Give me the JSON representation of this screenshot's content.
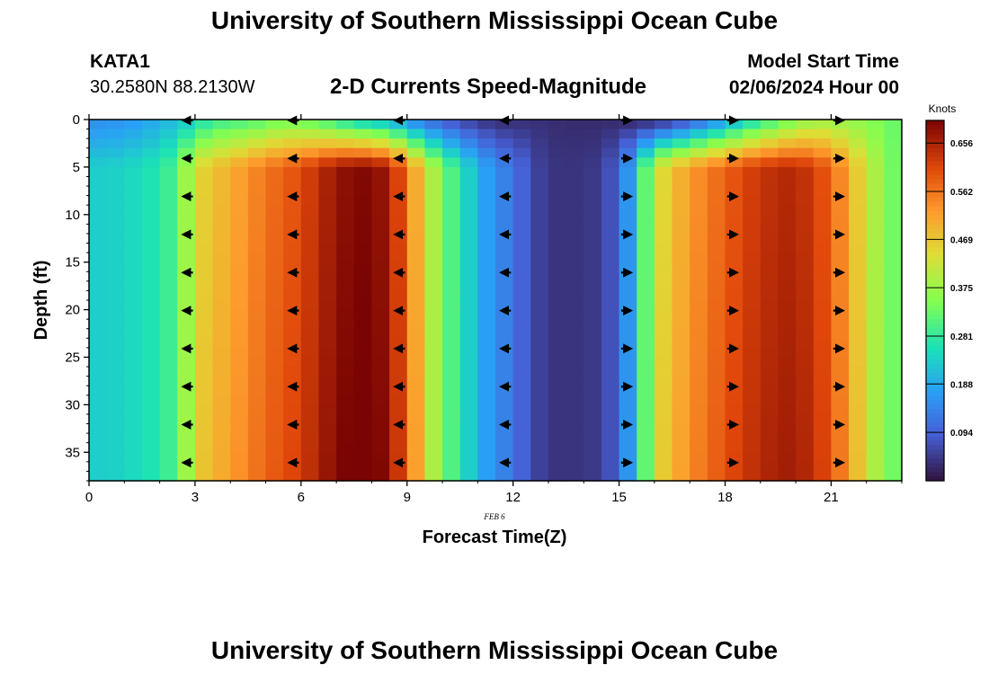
{
  "page": {
    "title_top": "University of Southern Mississippi Ocean Cube",
    "title_bottom": "University of Southern Mississippi Ocean Cube",
    "station_id": "KATA1",
    "station_coords": "30.2580N  88.2130W",
    "model_start_label": "Model Start Time",
    "model_start_value": "02/06/2024 Hour 00"
  },
  "chart_data": {
    "type": "heatmap",
    "title": "2-D Currents Speed-Magnitude",
    "xlabel": "Forecast Time(Z)",
    "ylabel": "Depth (ft)",
    "date_label": "FEB 6",
    "colorbar_title": "Knots",
    "xlim": [
      0,
      23
    ],
    "ylim": [
      0,
      38
    ],
    "vmin": 0,
    "vmax": 0.7,
    "x_ticks": [
      0,
      3,
      6,
      9,
      12,
      15,
      18,
      21
    ],
    "y_ticks": [
      0,
      5,
      10,
      15,
      20,
      25,
      30,
      35
    ],
    "colorbar_ticks": [
      "0.656",
      "0.562",
      "0.469",
      "0.375",
      "0.281",
      "0.188",
      "0.094"
    ],
    "colorbar_tick_values": [
      0.656,
      0.562,
      0.469,
      0.375,
      0.281,
      0.188,
      0.094
    ],
    "column_speed_profile": {
      "hours": [
        0,
        1,
        2,
        2.5,
        3,
        4,
        5,
        6,
        6.5,
        7,
        7.5,
        8,
        8.5,
        9,
        9.5,
        10,
        11,
        11.5,
        12,
        12.5,
        13,
        14,
        14.5,
        15,
        15.5,
        16,
        17,
        18,
        19,
        20,
        21,
        21.5,
        22,
        22.5,
        23
      ],
      "speed_knots": [
        0.23,
        0.24,
        0.27,
        0.31,
        0.44,
        0.5,
        0.56,
        0.6,
        0.64,
        0.67,
        0.69,
        0.69,
        0.66,
        0.56,
        0.44,
        0.34,
        0.2,
        0.15,
        0.12,
        0.07,
        0.04,
        0.04,
        0.05,
        0.1,
        0.22,
        0.42,
        0.52,
        0.58,
        0.63,
        0.65,
        0.58,
        0.5,
        0.42,
        0.36,
        0.31
      ]
    },
    "surface_layer": {
      "depth_ft": 3,
      "speed_knots_by_hour": [
        0.16,
        0.18,
        0.22,
        0.3,
        0.32,
        0.36,
        0.34,
        0.28,
        0.24,
        0.14,
        0.08,
        0.04,
        0.04,
        0.03,
        0.03,
        0.04,
        0.08,
        0.16,
        0.26,
        0.34,
        0.4,
        0.38,
        0.34,
        0.3
      ]
    },
    "vectors": {
      "hours": [
        2.8,
        5.8,
        8.8,
        11.8,
        15.2,
        18.2,
        21.2
      ],
      "depths_ft": [
        0,
        4,
        8,
        12,
        16,
        20,
        24,
        28,
        32,
        36
      ],
      "directions": [
        "west",
        "west",
        "west",
        "west",
        "east",
        "east",
        "east"
      ]
    }
  }
}
